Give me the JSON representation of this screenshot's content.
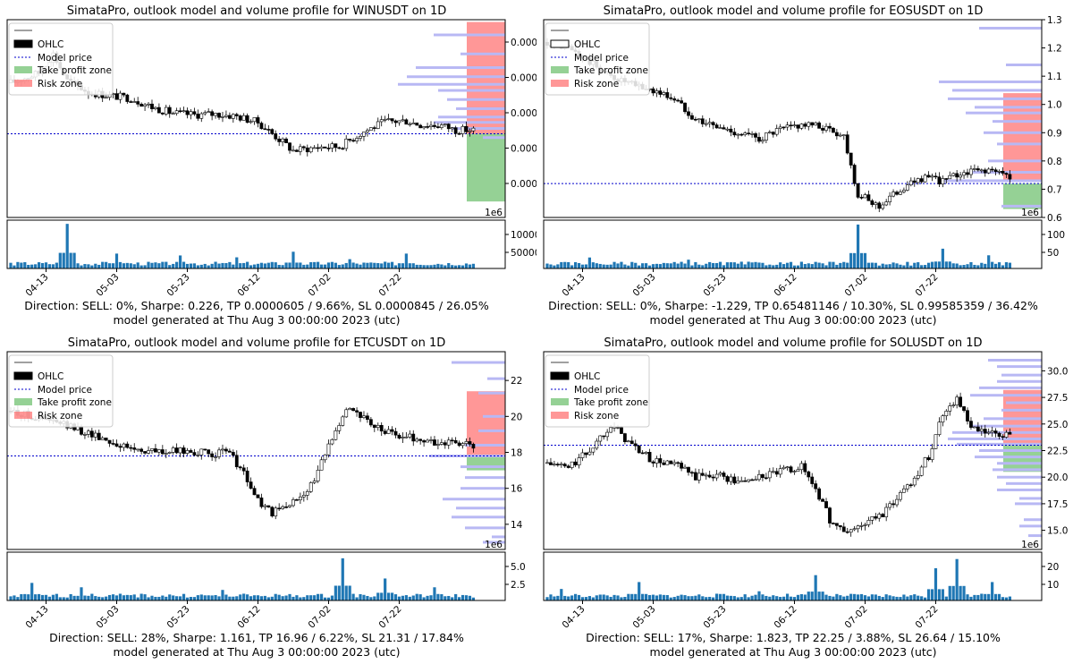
{
  "legend": {
    "ohlc": "OHLC",
    "model_price": "Model price",
    "take_profit": "Take profit zone",
    "risk": "Risk zone"
  },
  "x_ticks": [
    "04-13",
    "05-03",
    "05-23",
    "06-12",
    "07-02",
    "07-22"
  ],
  "colors": {
    "candle": "#000000",
    "volume_bar": "#1f77b4",
    "profile_bar": "#b8b8f4",
    "model_line": "#0000cc",
    "take_profit": "#5cb85c",
    "risk": "#ff6b6b"
  },
  "chart_data": [
    {
      "type": "candlestick",
      "title": "SimataPro, outlook model and volume profile for WINUSDT on 1D",
      "price_exponent_label": "1e6",
      "price_ticks": [
        "0.000",
        "0.000",
        "0.0000",
        "0.0000",
        "0.0000"
      ],
      "volume_ticks": [
        "10000",
        "50000"
      ],
      "price_range": [
        5.55e-05,
        8.15e-05
      ],
      "volume_range": [
        0,
        130000
      ],
      "model_price": 6.65e-05,
      "take_profit_zone": [
        5.76e-05,
        6.65e-05
      ],
      "risk_zone": [
        6.65e-05,
        8.12e-05
      ],
      "price_path": [
        [
          0,
          7.32e-05
        ],
        [
          8,
          7.45e-05
        ],
        [
          12,
          7.7e-05
        ],
        [
          16,
          7.35e-05
        ],
        [
          22,
          7.2e-05
        ],
        [
          28,
          7.15e-05
        ],
        [
          34,
          7.12e-05
        ],
        [
          40,
          7e-05
        ],
        [
          46,
          6.92e-05
        ],
        [
          52,
          6.9e-05
        ],
        [
          58,
          6.91e-05
        ],
        [
          64,
          6.88e-05
        ],
        [
          70,
          6.8e-05
        ],
        [
          80,
          6.43e-05
        ],
        [
          88,
          6.48e-05
        ],
        [
          93,
          6.48e-05
        ],
        [
          100,
          6.68e-05
        ],
        [
          106,
          6.81e-05
        ],
        [
          112,
          6.82e-05
        ],
        [
          116,
          6.77e-05
        ],
        [
          122,
          6.76e-05
        ],
        [
          126,
          6.7e-05
        ]
      ],
      "volume_spikes": [
        [
          16,
          120000
        ],
        [
          30,
          40000
        ],
        [
          48,
          35000
        ],
        [
          64,
          30000
        ],
        [
          80,
          45000
        ],
        [
          96,
          25000
        ],
        [
          112,
          40000
        ]
      ],
      "profile": [
        [
          7.95e-05,
          1.6
        ],
        [
          7.7e-05,
          1.0
        ],
        [
          7.52e-05,
          2.0
        ],
        [
          7.4e-05,
          2.2
        ],
        [
          7.3e-05,
          2.4
        ],
        [
          7.22e-05,
          1.5
        ],
        [
          7.1e-05,
          1.3
        ],
        [
          6.98e-05,
          1.1
        ],
        [
          6.87e-05,
          1.5
        ],
        [
          6.8e-05,
          1.6
        ],
        [
          6.72e-05,
          1.2
        ],
        [
          6.6e-05,
          0.5
        ]
      ],
      "direction_text": "Direction: SELL: 0%, Sharpe: 0.226, TP 0.0000605 / 9.66%,  SL 0.0000845 / 26.05%",
      "generated_text": "model generated at Thu Aug  3 00:00:00 2023 (utc)"
    },
    {
      "type": "candlestick",
      "title": "SimataPro, outlook model and volume profile for EOSUSDT on 1D",
      "price_exponent_label": "1e6",
      "price_ticks": [
        "1.3",
        "1.2",
        "1.1",
        "1.0",
        "0.9",
        "0.8",
        "0.7",
        "0.6"
      ],
      "volume_ticks": [
        "100",
        "50"
      ],
      "price_range": [
        0.6,
        1.3
      ],
      "volume_range": [
        0,
        110
      ],
      "model_price": 0.72,
      "take_profit_zone": [
        0.63,
        0.72
      ],
      "risk_zone": [
        0.73,
        1.04
      ],
      "price_path": [
        [
          0,
          1.22
        ],
        [
          6,
          1.2
        ],
        [
          12,
          1.15
        ],
        [
          18,
          1.1
        ],
        [
          24,
          1.07
        ],
        [
          30,
          1.05
        ],
        [
          36,
          1.02
        ],
        [
          42,
          0.95
        ],
        [
          48,
          0.92
        ],
        [
          54,
          0.9
        ],
        [
          60,
          0.88
        ],
        [
          66,
          0.91
        ],
        [
          72,
          0.93
        ],
        [
          78,
          0.92
        ],
        [
          84,
          0.89
        ],
        [
          88,
          0.68
        ],
        [
          94,
          0.64
        ],
        [
          100,
          0.7
        ],
        [
          106,
          0.74
        ],
        [
          112,
          0.73
        ],
        [
          118,
          0.76
        ],
        [
          124,
          0.77
        ],
        [
          130,
          0.75
        ],
        [
          134,
          0.74
        ]
      ],
      "volume_spikes": [
        [
          12,
          25
        ],
        [
          40,
          20
        ],
        [
          88,
          100
        ],
        [
          112,
          45
        ],
        [
          125,
          30
        ]
      ],
      "profile": [
        [
          1.27,
          1.4
        ],
        [
          1.14,
          0.8
        ],
        [
          1.08,
          2.3
        ],
        [
          1.05,
          2.0
        ],
        [
          1.02,
          2.1
        ],
        [
          0.99,
          1.5
        ],
        [
          0.97,
          1.7
        ],
        [
          0.94,
          1.1
        ],
        [
          0.9,
          1.3
        ],
        [
          0.86,
          1.0
        ],
        [
          0.8,
          1.2
        ],
        [
          0.76,
          1.6
        ],
        [
          0.73,
          2.2
        ],
        [
          0.64,
          0.9
        ]
      ],
      "direction_text": "Direction: SELL: 0%, Sharpe: -1.229, TP 0.65481146 / 10.30%,  SL 0.99585359 / 36.42%",
      "generated_text": "model generated at Thu Aug  3 00:00:00 2023 (utc)"
    },
    {
      "type": "candlestick",
      "title": "SimataPro, outlook model and volume profile for ETCUSDT on 1D",
      "price_exponent_label": "1e6",
      "price_ticks": [
        "22",
        "20",
        "18",
        "16",
        "14"
      ],
      "volume_ticks": [
        "5.0",
        "2.5"
      ],
      "price_range": [
        12.6,
        23.6
      ],
      "volume_range": [
        0,
        5.5
      ],
      "model_price": 17.8,
      "take_profit_zone": [
        17.0,
        17.8
      ],
      "risk_zone": [
        17.8,
        21.4
      ],
      "price_path": [
        [
          0,
          20.3
        ],
        [
          8,
          19.9
        ],
        [
          14,
          19.6
        ],
        [
          20,
          19.2
        ],
        [
          26,
          18.8
        ],
        [
          32,
          18.3
        ],
        [
          38,
          18.1
        ],
        [
          44,
          18.0
        ],
        [
          50,
          18.1
        ],
        [
          56,
          17.9
        ],
        [
          62,
          18.0
        ],
        [
          66,
          16.8
        ],
        [
          70,
          15.3
        ],
        [
          74,
          14.6
        ],
        [
          80,
          15.2
        ],
        [
          86,
          16.4
        ],
        [
          92,
          19.4
        ],
        [
          96,
          20.6
        ],
        [
          102,
          19.5
        ],
        [
          108,
          19.0
        ],
        [
          114,
          18.8
        ],
        [
          120,
          18.5
        ],
        [
          126,
          18.6
        ],
        [
          132,
          18.2
        ]
      ],
      "volume_spikes": [
        [
          6,
          2.0
        ],
        [
          20,
          1.5
        ],
        [
          60,
          1.2
        ],
        [
          94,
          4.8
        ],
        [
          106,
          2.5
        ],
        [
          120,
          1.5
        ]
      ],
      "profile": [
        [
          23.0,
          1.2
        ],
        [
          22.1,
          0.4
        ],
        [
          21.3,
          0.6
        ],
        [
          20.0,
          0.5
        ],
        [
          19.2,
          0.6
        ],
        [
          18.4,
          0.9
        ],
        [
          17.8,
          1.7
        ],
        [
          17.2,
          1.0
        ],
        [
          16.6,
          0.9
        ],
        [
          16.0,
          1.0
        ],
        [
          15.4,
          1.4
        ],
        [
          14.9,
          1.1
        ],
        [
          14.4,
          1.2
        ],
        [
          13.8,
          0.9
        ],
        [
          13.3,
          0.3
        ],
        [
          13.0,
          0.5
        ]
      ],
      "direction_text": "Direction: SELL: 28%, Sharpe: 1.161, TP 16.96 / 6.22%,  SL 21.31 / 17.84%",
      "generated_text": "model generated at Thu Aug  3 00:00:00 2023 (utc)"
    },
    {
      "type": "candlestick",
      "title": "SimataPro, outlook model and volume profile for SOLUSDT on 1D",
      "price_exponent_label": "1e6",
      "price_ticks": [
        "30.0",
        "27.5",
        "25.0",
        "22.5",
        "20.0",
        "17.5",
        "15.0"
      ],
      "volume_ticks": [
        "20",
        "10"
      ],
      "price_range": [
        13.2,
        31.8
      ],
      "volume_range": [
        0,
        21
      ],
      "model_price": 23.0,
      "take_profit_zone": [
        20.5,
        23.0
      ],
      "risk_zone": [
        23.0,
        28.2
      ],
      "price_path": [
        [
          0,
          21.3
        ],
        [
          6,
          20.9
        ],
        [
          12,
          22.5
        ],
        [
          18,
          25.0
        ],
        [
          24,
          23.0
        ],
        [
          30,
          21.5
        ],
        [
          36,
          21.2
        ],
        [
          42,
          20.0
        ],
        [
          48,
          20.3
        ],
        [
          54,
          19.5
        ],
        [
          60,
          20.0
        ],
        [
          66,
          20.5
        ],
        [
          72,
          21.0
        ],
        [
          76,
          19.0
        ],
        [
          80,
          16.0
        ],
        [
          84,
          14.8
        ],
        [
          88,
          15.3
        ],
        [
          92,
          16.0
        ],
        [
          96,
          16.8
        ],
        [
          100,
          18.5
        ],
        [
          104,
          20.0
        ],
        [
          108,
          22.0
        ],
        [
          112,
          26.0
        ],
        [
          116,
          27.5
        ],
        [
          120,
          24.5
        ],
        [
          126,
          24.0
        ],
        [
          132,
          23.8
        ],
        [
          136,
          23.2
        ]
      ],
      "volume_spikes": [
        [
          4,
          5.0
        ],
        [
          26,
          8.0
        ],
        [
          60,
          4.0
        ],
        [
          76,
          11.0
        ],
        [
          110,
          14.0
        ],
        [
          116,
          18.0
        ],
        [
          126,
          8.0
        ]
      ],
      "profile": [
        [
          31.0,
          1.2
        ],
        [
          30.4,
          1.0
        ],
        [
          29.6,
          0.9
        ],
        [
          29.0,
          1.0
        ],
        [
          28.4,
          1.4
        ],
        [
          27.7,
          1.6
        ],
        [
          27.0,
          0.8
        ],
        [
          26.3,
          0.9
        ],
        [
          25.5,
          1.3
        ],
        [
          24.8,
          1.6
        ],
        [
          24.2,
          2.0
        ],
        [
          23.6,
          2.1
        ],
        [
          23.1,
          1.9
        ],
        [
          22.5,
          1.4
        ],
        [
          21.9,
          1.5
        ],
        [
          21.3,
          1.0
        ],
        [
          20.7,
          1.1
        ],
        [
          20.0,
          1.0
        ],
        [
          19.4,
          0.8
        ],
        [
          18.8,
          1.0
        ],
        [
          18.0,
          0.5
        ],
        [
          17.5,
          0.6
        ],
        [
          16.0,
          0.4
        ],
        [
          15.4,
          0.5
        ],
        [
          14.5,
          0.3
        ]
      ],
      "direction_text": "Direction: SELL: 17%, Sharpe: 1.823, TP 22.25 / 3.88%,  SL 26.64 / 15.10%",
      "generated_text": "model generated at Thu Aug  3 00:00:00 2023 (utc)"
    }
  ]
}
